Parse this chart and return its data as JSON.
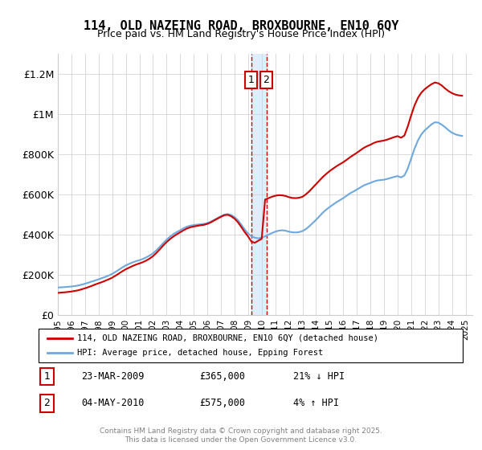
{
  "title": "114, OLD NAZEING ROAD, BROXBOURNE, EN10 6QY",
  "subtitle": "Price paid vs. HM Land Registry's House Price Index (HPI)",
  "ylabel_ticks": [
    "£0",
    "£200K",
    "£400K",
    "£600K",
    "£800K",
    "£1M",
    "£1.2M"
  ],
  "ytick_values": [
    0,
    200000,
    400000,
    600000,
    800000,
    1000000,
    1200000
  ],
  "ylim": [
    0,
    1300000
  ],
  "xlim_start": 1995,
  "xlim_end": 2025.5,
  "legend_line1": "114, OLD NAZEING ROAD, BROXBOURNE, EN10 6QY (detached house)",
  "legend_line2": "HPI: Average price, detached house, Epping Forest",
  "sale1_label": "1",
  "sale1_date": "23-MAR-2009",
  "sale1_price": "£365,000",
  "sale1_change": "21% ↓ HPI",
  "sale2_label": "2",
  "sale2_date": "04-MAY-2010",
  "sale2_price": "£575,000",
  "sale2_change": "4% ↑ HPI",
  "footer": "Contains HM Land Registry data © Crown copyright and database right 2025.\nThis data is licensed under the Open Government Licence v3.0.",
  "sale1_x": 2009.22,
  "sale2_x": 2010.34,
  "hpi_color": "#6fa8dc",
  "price_color": "#cc0000",
  "highlight_color": "#ddeeff",
  "sale_box_color": "#cc0000",
  "background_color": "#ffffff",
  "hpi_data_x": [
    1995.0,
    1995.25,
    1995.5,
    1995.75,
    1996.0,
    1996.25,
    1996.5,
    1996.75,
    1997.0,
    1997.25,
    1997.5,
    1997.75,
    1998.0,
    1998.25,
    1998.5,
    1998.75,
    1999.0,
    1999.25,
    1999.5,
    1999.75,
    2000.0,
    2000.25,
    2000.5,
    2000.75,
    2001.0,
    2001.25,
    2001.5,
    2001.75,
    2002.0,
    2002.25,
    2002.5,
    2002.75,
    2003.0,
    2003.25,
    2003.5,
    2003.75,
    2004.0,
    2004.25,
    2004.5,
    2004.75,
    2005.0,
    2005.25,
    2005.5,
    2005.75,
    2006.0,
    2006.25,
    2006.5,
    2006.75,
    2007.0,
    2007.25,
    2007.5,
    2007.75,
    2008.0,
    2008.25,
    2008.5,
    2008.75,
    2009.0,
    2009.25,
    2009.5,
    2009.75,
    2010.0,
    2010.25,
    2010.5,
    2010.75,
    2011.0,
    2011.25,
    2011.5,
    2011.75,
    2012.0,
    2012.25,
    2012.5,
    2012.75,
    2013.0,
    2013.25,
    2013.5,
    2013.75,
    2014.0,
    2014.25,
    2014.5,
    2014.75,
    2015.0,
    2015.25,
    2015.5,
    2015.75,
    2016.0,
    2016.25,
    2016.5,
    2016.75,
    2017.0,
    2017.25,
    2017.5,
    2017.75,
    2018.0,
    2018.25,
    2018.5,
    2018.75,
    2019.0,
    2019.25,
    2019.5,
    2019.75,
    2020.0,
    2020.25,
    2020.5,
    2020.75,
    2021.0,
    2021.25,
    2021.5,
    2021.75,
    2022.0,
    2022.25,
    2022.5,
    2022.75,
    2023.0,
    2023.25,
    2023.5,
    2023.75,
    2024.0,
    2024.25,
    2024.5,
    2024.75
  ],
  "hpi_data_y": [
    137000,
    138000,
    139000,
    140500,
    142000,
    144000,
    147000,
    151000,
    156000,
    161000,
    167000,
    172000,
    178000,
    184000,
    190000,
    197000,
    205000,
    215000,
    226000,
    237000,
    247000,
    255000,
    262000,
    268000,
    273000,
    279000,
    287000,
    296000,
    307000,
    322000,
    340000,
    358000,
    375000,
    390000,
    403000,
    413000,
    422000,
    432000,
    440000,
    445000,
    448000,
    450000,
    452000,
    454000,
    458000,
    465000,
    474000,
    483000,
    492000,
    500000,
    503000,
    498000,
    488000,
    472000,
    450000,
    426000,
    405000,
    392000,
    385000,
    382000,
    385000,
    392000,
    400000,
    408000,
    415000,
    420000,
    422000,
    420000,
    415000,
    412000,
    411000,
    413000,
    418000,
    428000,
    442000,
    458000,
    474000,
    492000,
    510000,
    525000,
    538000,
    550000,
    562000,
    572000,
    582000,
    594000,
    606000,
    615000,
    625000,
    635000,
    645000,
    652000,
    658000,
    665000,
    670000,
    672000,
    674000,
    678000,
    683000,
    688000,
    692000,
    685000,
    695000,
    730000,
    780000,
    830000,
    870000,
    900000,
    920000,
    935000,
    950000,
    960000,
    958000,
    948000,
    935000,
    920000,
    908000,
    900000,
    895000,
    892000
  ],
  "price_data_x": [
    1995.0,
    1995.25,
    1995.5,
    1995.75,
    1996.0,
    1996.25,
    1996.5,
    1996.75,
    1997.0,
    1997.25,
    1997.5,
    1997.75,
    1998.0,
    1998.25,
    1998.5,
    1998.75,
    1999.0,
    1999.25,
    1999.5,
    1999.75,
    2000.0,
    2000.25,
    2000.5,
    2000.75,
    2001.0,
    2001.25,
    2001.5,
    2001.75,
    2002.0,
    2002.25,
    2002.5,
    2002.75,
    2003.0,
    2003.25,
    2003.5,
    2003.75,
    2004.0,
    2004.25,
    2004.5,
    2004.75,
    2005.0,
    2005.25,
    2005.5,
    2005.75,
    2006.0,
    2006.25,
    2006.5,
    2006.75,
    2007.0,
    2007.25,
    2007.5,
    2007.75,
    2008.0,
    2008.25,
    2008.5,
    2008.75,
    2009.0,
    2009.25,
    2009.5,
    2009.75,
    2010.0,
    2010.25,
    2010.5,
    2010.75,
    2011.0,
    2011.25,
    2011.5,
    2011.75,
    2012.0,
    2012.25,
    2012.5,
    2012.75,
    2013.0,
    2013.25,
    2013.5,
    2013.75,
    2014.0,
    2014.25,
    2014.5,
    2014.75,
    2015.0,
    2015.25,
    2015.5,
    2015.75,
    2016.0,
    2016.25,
    2016.5,
    2016.75,
    2017.0,
    2017.25,
    2017.5,
    2017.75,
    2018.0,
    2018.25,
    2018.5,
    2018.75,
    2019.0,
    2019.25,
    2019.5,
    2019.75,
    2020.0,
    2020.25,
    2020.5,
    2020.75,
    2021.0,
    2021.25,
    2021.5,
    2021.75,
    2022.0,
    2022.25,
    2022.5,
    2022.75,
    2023.0,
    2023.25,
    2023.5,
    2023.75,
    2024.0,
    2024.25,
    2024.5,
    2024.75
  ],
  "price_data_y": [
    110000,
    112000,
    113000,
    115000,
    117000,
    120000,
    123000,
    128000,
    133000,
    139000,
    145000,
    152000,
    158000,
    164000,
    171000,
    178000,
    186000,
    196000,
    207000,
    218000,
    228000,
    236000,
    244000,
    251000,
    257000,
    263000,
    271000,
    281000,
    293000,
    309000,
    327000,
    346000,
    363000,
    378000,
    391000,
    402000,
    412000,
    422000,
    431000,
    437000,
    441000,
    444000,
    447000,
    449000,
    454000,
    461000,
    471000,
    480000,
    489000,
    497000,
    499000,
    492000,
    480000,
    462000,
    438000,
    413000,
    391000,
    365000,
    360000,
    370000,
    380000,
    575000,
    582000,
    589000,
    594000,
    597000,
    596000,
    593000,
    587000,
    583000,
    582000,
    584000,
    589000,
    601000,
    616000,
    634000,
    652000,
    670000,
    688000,
    703000,
    717000,
    729000,
    741000,
    751000,
    761000,
    773000,
    786000,
    797000,
    808000,
    820000,
    832000,
    841000,
    848000,
    857000,
    863000,
    866000,
    869000,
    874000,
    880000,
    886000,
    891000,
    883000,
    894000,
    940000,
    995000,
    1045000,
    1082000,
    1108000,
    1125000,
    1138000,
    1150000,
    1158000,
    1154000,
    1143000,
    1128000,
    1115000,
    1105000,
    1098000,
    1094000,
    1092000
  ]
}
